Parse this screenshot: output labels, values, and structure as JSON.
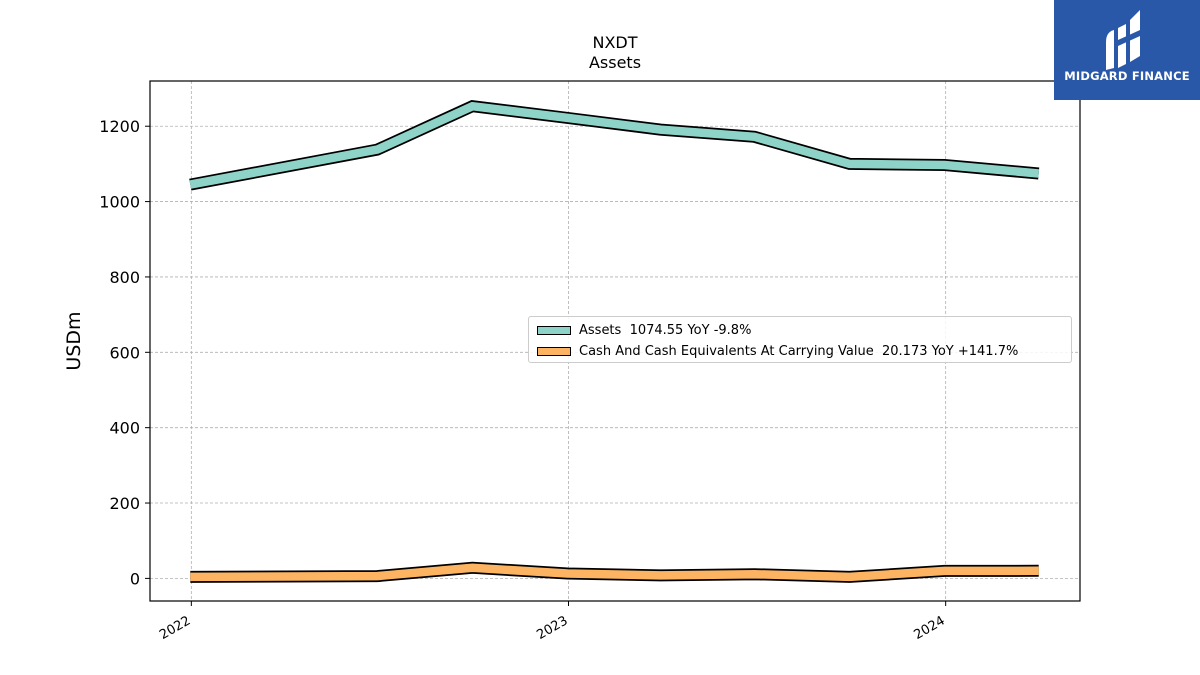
{
  "brand": {
    "name": "MIDGARD FINANCE",
    "color": "#2a58a8"
  },
  "chart_data": {
    "type": "line",
    "title": "NXDT",
    "subtitle": "Assets",
    "ylabel": "USDm",
    "xlabel": "",
    "ylim": [
      -60,
      1320
    ],
    "xlim": [
      "2021-11-22",
      "2024-05-10"
    ],
    "yticks": [
      0,
      200,
      400,
      600,
      800,
      1000,
      1200
    ],
    "xticks": [
      "2022",
      "2023",
      "2024"
    ],
    "grid": true,
    "legend_position": "center-right",
    "x": [
      "2021-12-31",
      "2022-06-30",
      "2022-09-30",
      "2022-12-31",
      "2023-03-31",
      "2023-06-30",
      "2023-09-30",
      "2023-12-31",
      "2024-03-31"
    ],
    "series": [
      {
        "name": "Assets",
        "legend": "Assets  1074.55 YoY -9.8%",
        "color": "#8dd3c7",
        "values": [
          1045,
          1138,
          1253,
          1222,
          1191,
          1172,
          1100,
          1097,
          1074.55
        ]
      },
      {
        "name": "Cash And Cash Equivalents At Carrying Value",
        "legend": "Cash And Cash Equivalents At Carrying Value  20.173 YoY +141.7%",
        "color": "#fdb462",
        "values": [
          4,
          6,
          28,
          13,
          8,
          11,
          4,
          20,
          20.173
        ]
      }
    ]
  }
}
